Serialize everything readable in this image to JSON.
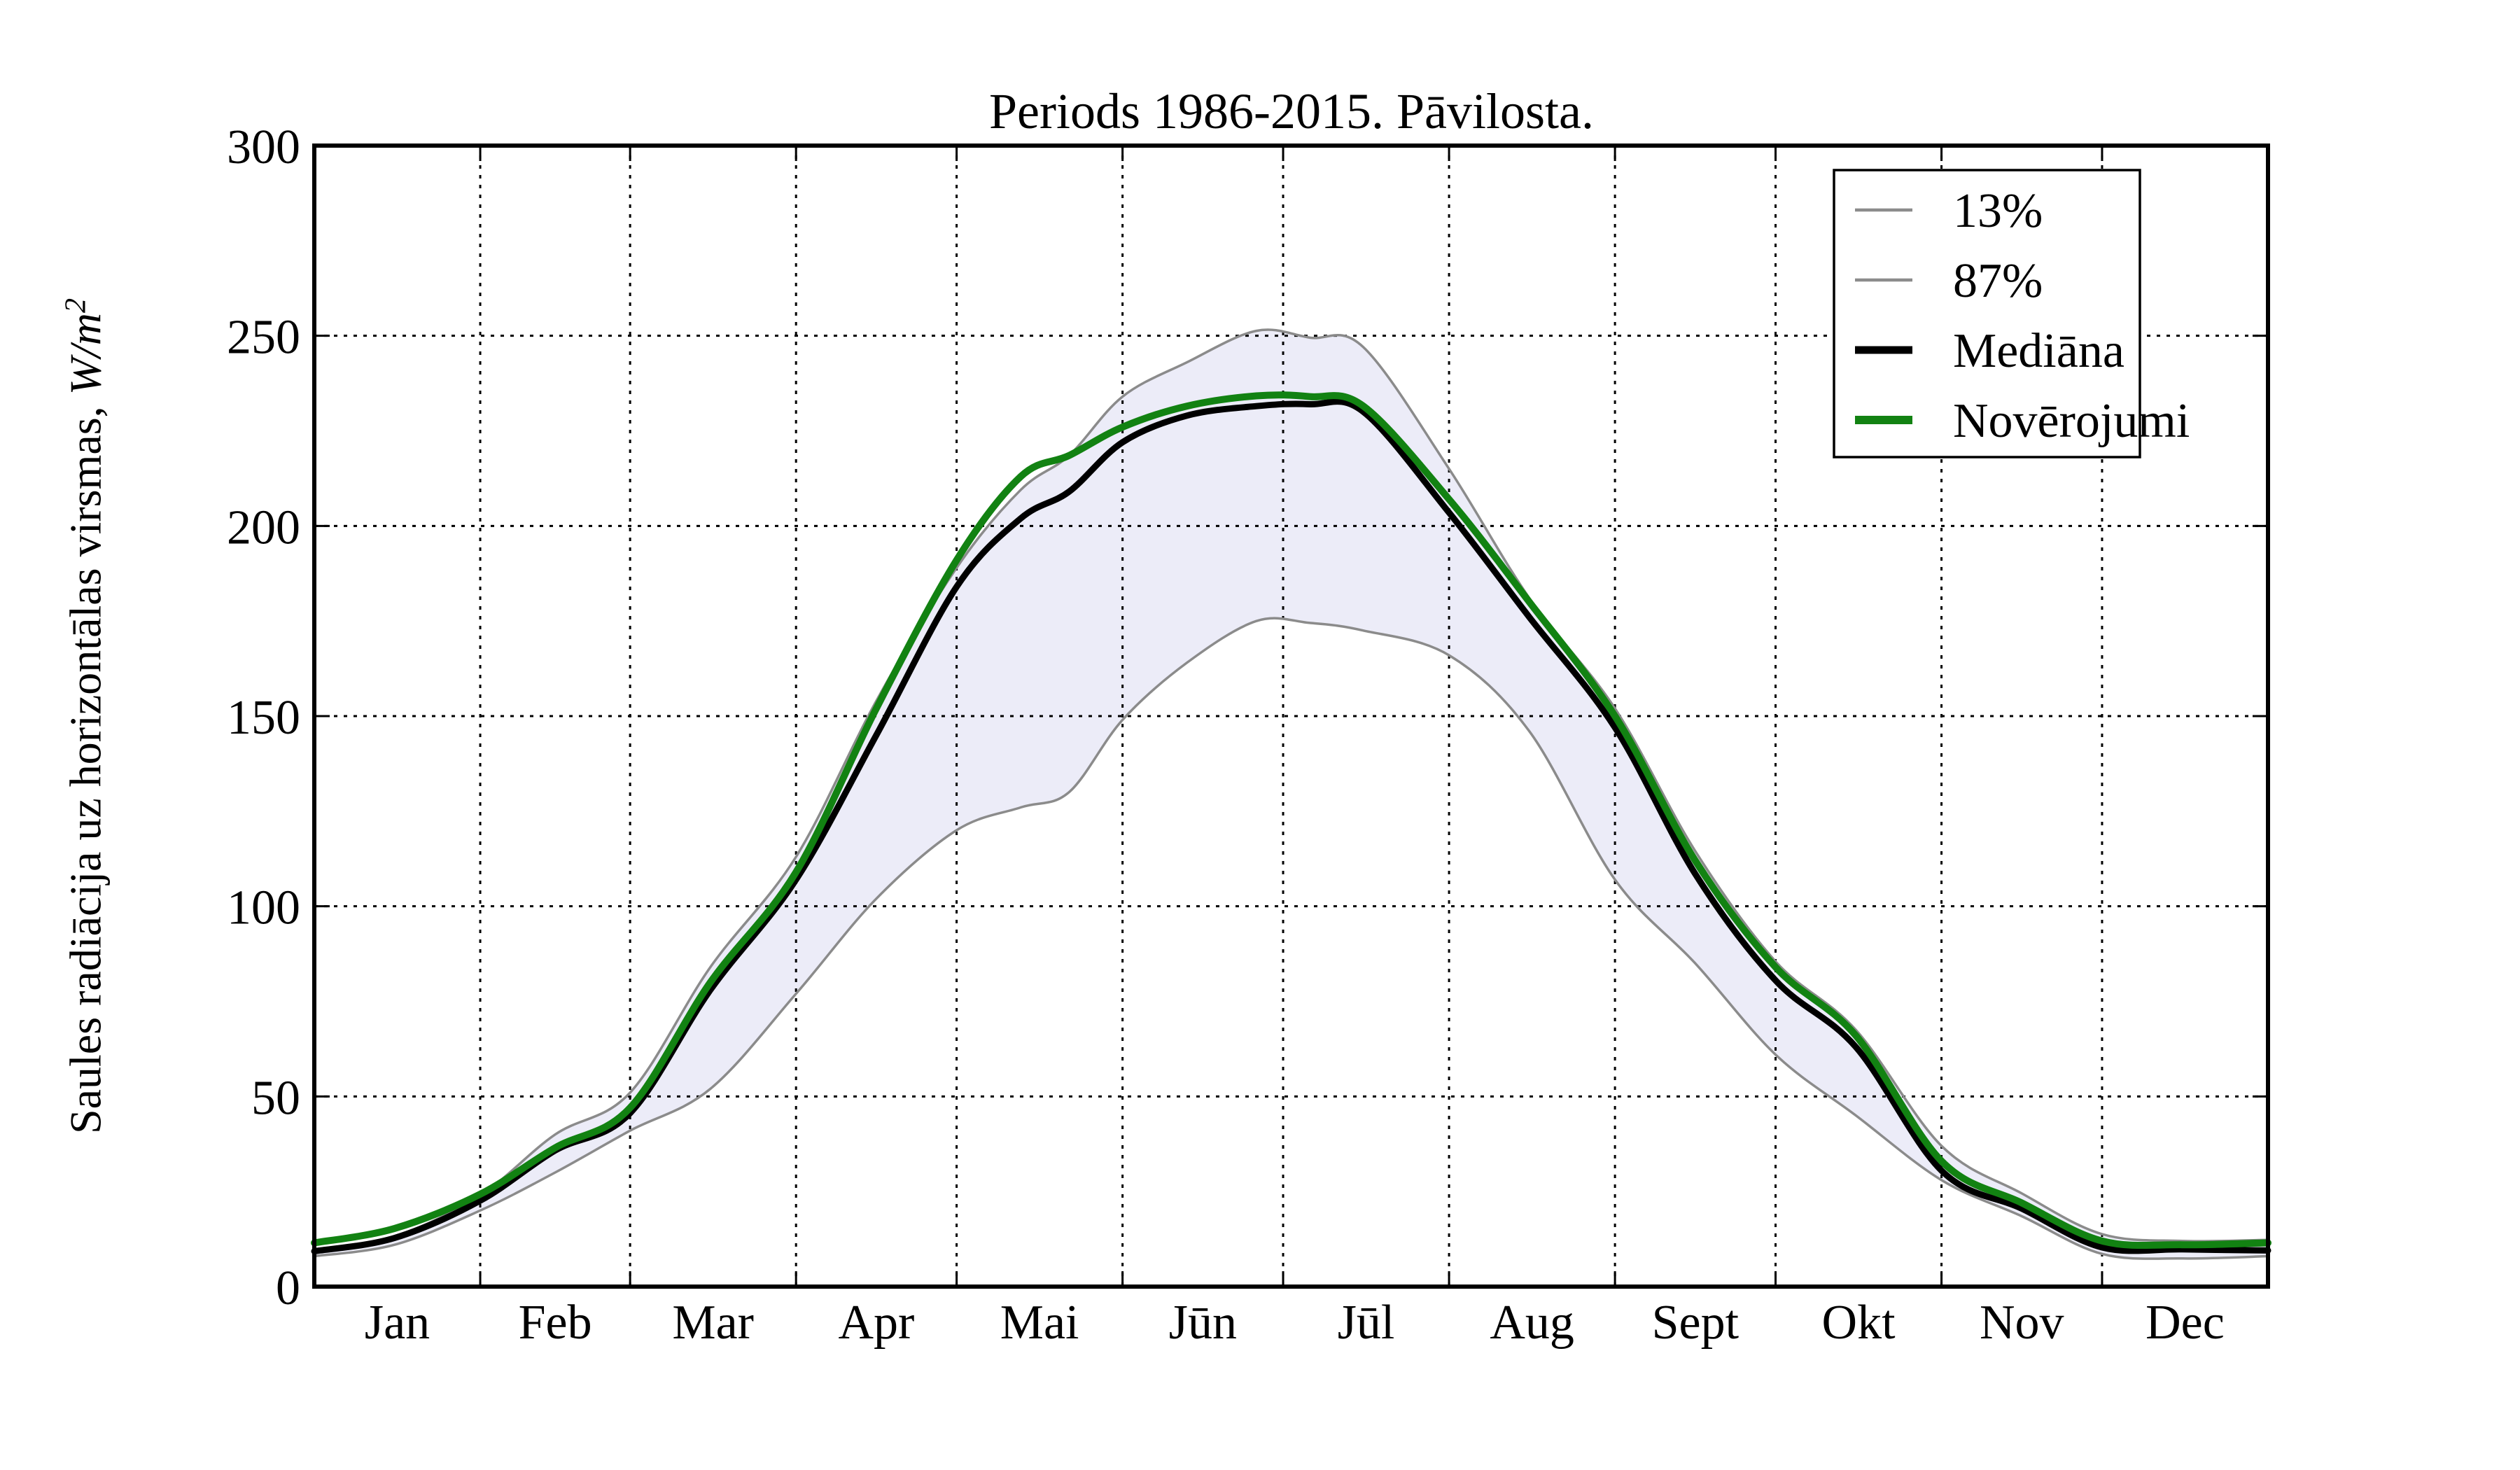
{
  "title": "Periods 1986-2015. Pāvilosta.",
  "ylabel": {
    "text": "Saules radiācija uz horizontālas virsmas, ",
    "unit": "W/m",
    "sup": "2"
  },
  "legend": {
    "position": "upper right",
    "entries": [
      "13%",
      "87%",
      "Mediāna",
      "Novērojumi"
    ]
  },
  "colors": {
    "percentile_line": "#8b8b8b",
    "median_line": "#000000",
    "observation_line": "#128212",
    "band_fill": "#ececf8",
    "grid": "#000000",
    "background": "#ffffff"
  },
  "chart_data": {
    "type": "line",
    "title": "Periods 1986-2015. Pāvilosta.",
    "xlabel": "",
    "ylabel": "Saules radiācija uz horizontālas virsmas, W/m2",
    "x_unit": "day_of_year",
    "xlim": [
      0,
      365
    ],
    "ylim": [
      0,
      300
    ],
    "grid": true,
    "yticks": [
      0,
      50,
      100,
      150,
      200,
      250,
      300
    ],
    "month_labels": [
      "Jan",
      "Feb",
      "Mar",
      "Apr",
      "Mai",
      "Jūn",
      "Jūl",
      "Aug",
      "Sept",
      "Okt",
      "Nov",
      "Dec"
    ],
    "month_start_days": [
      0,
      31,
      59,
      90,
      120,
      151,
      181,
      212,
      243,
      273,
      304,
      334,
      365
    ],
    "month_label_days": [
      15.5,
      45,
      74.5,
      105,
      135.5,
      166,
      196.5,
      227.5,
      258,
      288.5,
      319,
      349.5
    ],
    "days": [
      0,
      15,
      31,
      45,
      59,
      74,
      90,
      105,
      120,
      132,
      141,
      151,
      163,
      176,
      186,
      196,
      212,
      227,
      243,
      258,
      273,
      288,
      304,
      319,
      334,
      349,
      365
    ],
    "band": {
      "lower": "13%",
      "upper": "87%"
    },
    "series": [
      {
        "name": "13%",
        "role": "percentile-lower",
        "color": "#8b8b8b",
        "width": 3.5,
        "values": [
          8,
          11,
          20,
          30,
          41,
          52,
          77,
          102,
          120,
          126,
          130,
          149,
          164,
          175,
          174.5,
          172.5,
          166,
          146,
          107,
          85,
          61,
          45,
          28,
          18.5,
          8.6,
          7.4,
          8
        ]
      },
      {
        "name": "87%",
        "role": "percentile-upper",
        "color": "#8b8b8b",
        "width": 3.5,
        "values": [
          9.8,
          13.2,
          24,
          40,
          51,
          84,
          113,
          154,
          189,
          209.5,
          218.5,
          234,
          243,
          251.3,
          249.5,
          247,
          215,
          181,
          152,
          114.5,
          85.5,
          67.5,
          37,
          24.5,
          13.8,
          12,
          12.3
        ]
      },
      {
        "name": "Mediāna",
        "role": "median",
        "color": "#000000",
        "width": 9,
        "values": [
          9.3,
          12.8,
          22.6,
          35.8,
          45.6,
          78,
          107,
          145,
          184,
          202,
          209,
          222,
          229,
          231.5,
          232,
          230,
          203.5,
          176,
          147,
          108.5,
          80.5,
          63,
          30.5,
          20.5,
          10.3,
          9.8,
          9.5
        ]
      },
      {
        "name": "Novērojumi",
        "role": "observations",
        "color": "#128212",
        "width": 10,
        "values": [
          11.5,
          15.3,
          24.3,
          36.5,
          47,
          80,
          109,
          152,
          191,
          213,
          218.5,
          226,
          231.5,
          234.2,
          234,
          231.5,
          207,
          180,
          150,
          112,
          84,
          66,
          33,
          22,
          12,
          11,
          11.5
        ]
      }
    ]
  }
}
